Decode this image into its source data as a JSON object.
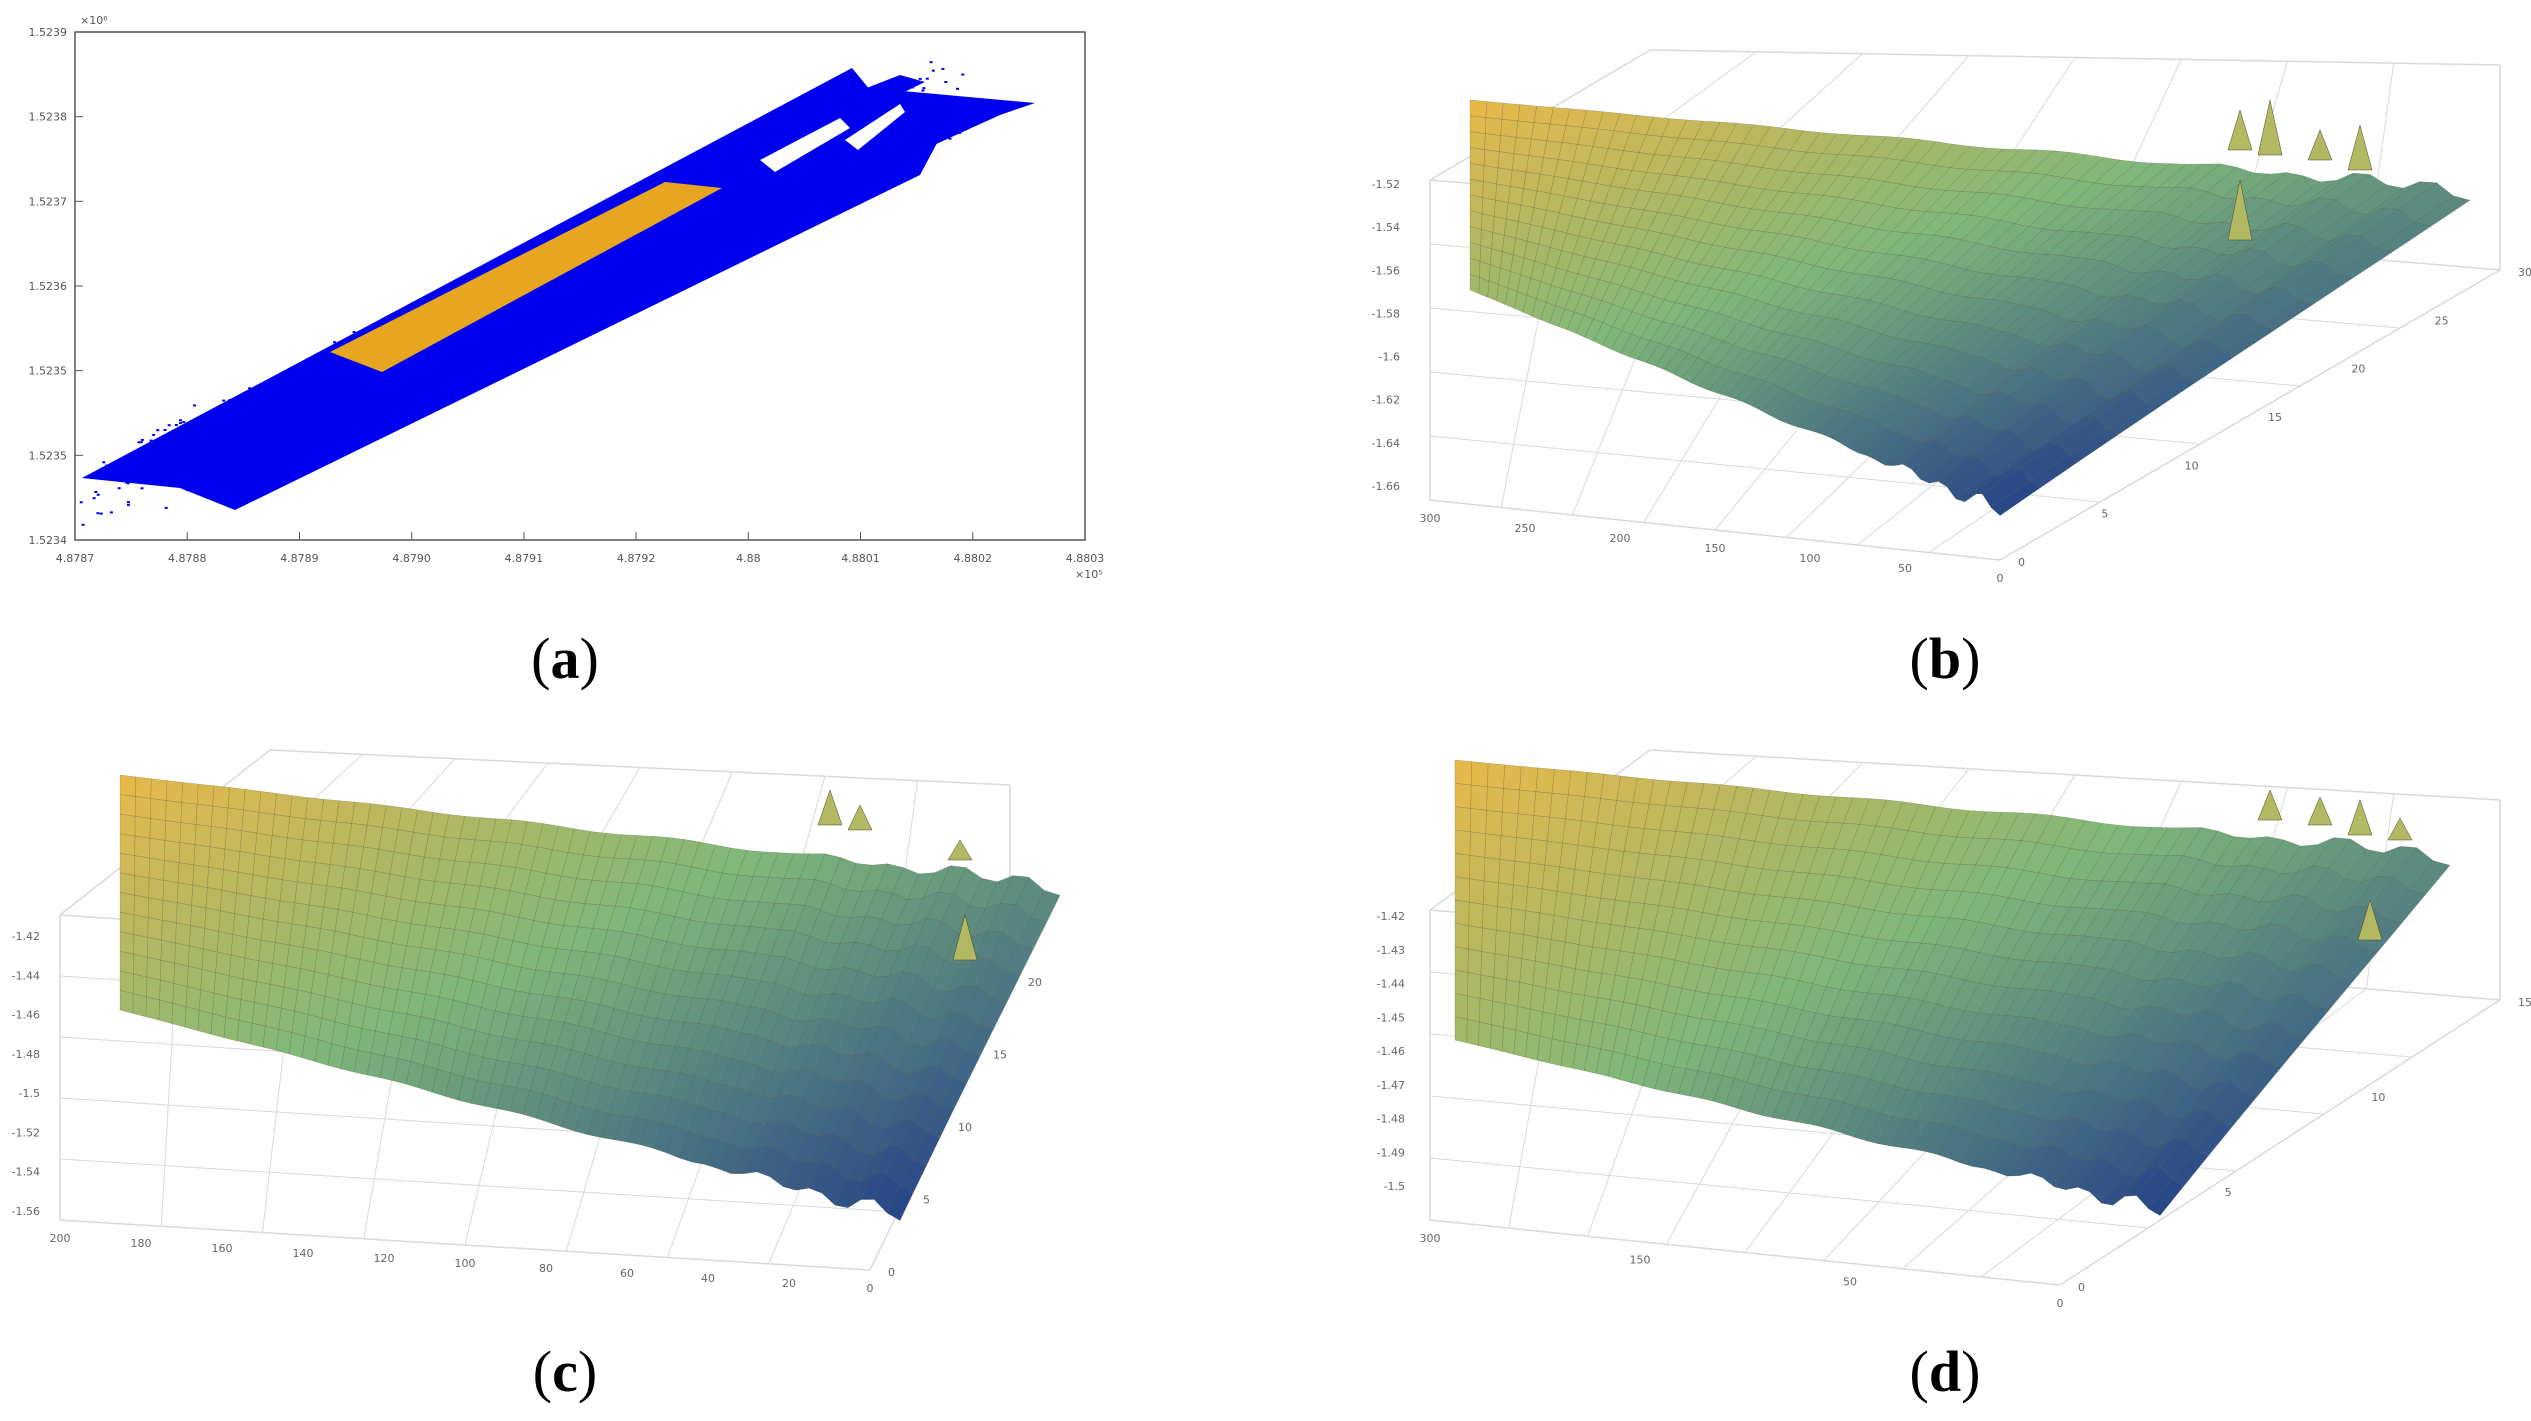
{
  "figure": {
    "captions": [
      {
        "letter": "a"
      },
      {
        "letter": "b"
      },
      {
        "letter": "c"
      },
      {
        "letter": "d"
      }
    ]
  },
  "colors": {
    "point_cloud": "#0000ee",
    "roi": "#e8a620",
    "grid": "#d9d9d9",
    "axis": "#555555",
    "surface_high": "#e6b84a",
    "surface_mid": "#7fb87a",
    "surface_low": "#1f3b8a"
  },
  "chart_data": [
    {
      "panel": "a",
      "type": "scatter",
      "x_exponent": "×10⁵",
      "y_exponent": "×10⁶",
      "x_ticks": [
        "4.8787",
        "4.8788",
        "4.8789",
        "4.8790",
        "4.8791",
        "4.8792",
        "4.88",
        "4.8801",
        "4.8802",
        "4.8803"
      ],
      "y_ticks": [
        "1.5234",
        "1.5235",
        "1.5235",
        "1.5236",
        "1.5237",
        "1.5238",
        "1.5239"
      ],
      "series": [
        {
          "name": "",
          "kind": "point cloud",
          "color": "#0000ee"
        },
        {
          "name": "",
          "kind": "selected region",
          "color": "#e8a620"
        }
      ]
    },
    {
      "panel": "b",
      "type": "surface",
      "z_ticks": [
        "-1.52",
        "-1.54",
        "-1.56",
        "-1.58",
        "-1.6",
        "-1.62",
        "-1.64",
        "-1.66"
      ],
      "x_ticks": [
        "300",
        "250",
        "200",
        "150",
        "100",
        "50",
        "0"
      ],
      "y_ticks": [
        "0",
        "5",
        "10",
        "15",
        "20",
        "25",
        "30"
      ]
    },
    {
      "panel": "c",
      "type": "surface",
      "z_ticks": [
        "-1.42",
        "-1.44",
        "-1.46",
        "-1.48",
        "-1.5",
        "-1.52",
        "-1.54",
        "-1.56"
      ],
      "x_ticks": [
        "200",
        "180",
        "160",
        "140",
        "120",
        "100",
        "80",
        "60",
        "40",
        "20",
        "0"
      ],
      "y_ticks": [
        "0",
        "5",
        "10",
        "15",
        "20"
      ]
    },
    {
      "panel": "d",
      "type": "surface",
      "z_ticks": [
        "-1.42",
        "-1.43",
        "-1.44",
        "-1.45",
        "-1.46",
        "-1.47",
        "-1.48",
        "-1.49",
        "-1.5"
      ],
      "x_ticks": [
        "300",
        "150",
        "50",
        "0"
      ],
      "y_ticks": [
        "0",
        "5",
        "10",
        "15"
      ]
    }
  ]
}
